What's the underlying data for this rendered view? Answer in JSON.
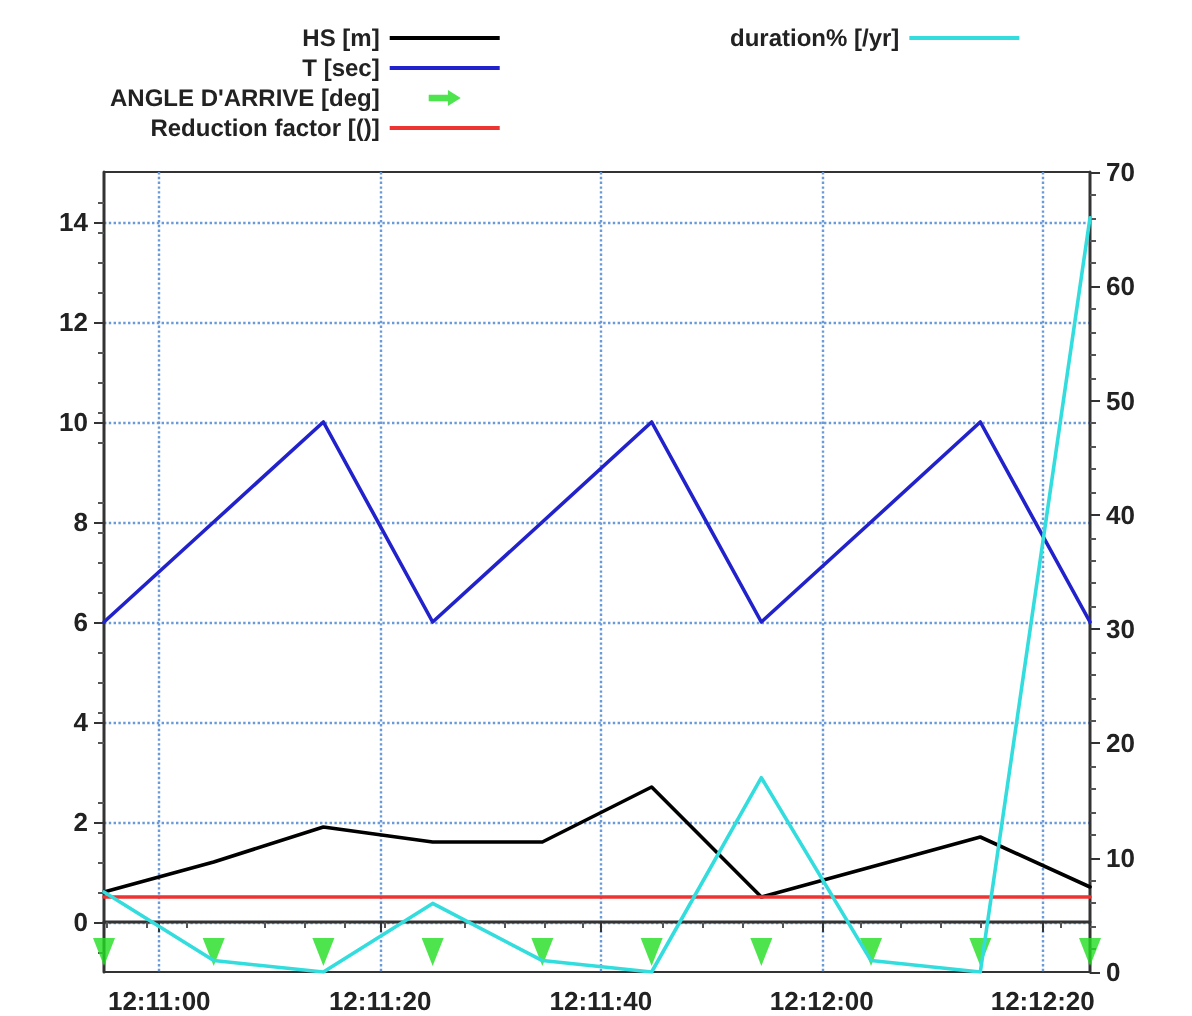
{
  "chart_data": {
    "type": "line",
    "x": [
      12.18194,
      12.1847,
      12.18746,
      12.19021,
      12.19297,
      12.19572,
      12.19848,
      12.20124,
      12.20399,
      12.20675
    ],
    "xlim": [
      12.18194,
      12.20675
    ],
    "xticks": [
      {
        "value": 12.18333,
        "label": "12:11:00"
      },
      {
        "value": 12.18889,
        "label": "12:11:20"
      },
      {
        "value": 12.19444,
        "label": "12:11:40"
      },
      {
        "value": 12.2,
        "label": "12:12:00"
      },
      {
        "value": 12.20556,
        "label": "12:12:20"
      }
    ],
    "ylim": [
      -1,
      15
    ],
    "yticks": [
      0,
      2,
      4,
      6,
      8,
      10,
      12,
      14
    ],
    "y2lim": [
      0,
      70
    ],
    "y2ticks": [
      0,
      10,
      20,
      30,
      40,
      50,
      60,
      70
    ],
    "grid": true,
    "legend": "top",
    "marker": "none",
    "line_style": "solid",
    "series": [
      {
        "name": "HS [m]",
        "color": "#000000",
        "values": [
          0.6,
          1.2,
          1.9,
          1.6,
          1.6,
          2.7,
          0.5,
          1.1,
          1.7,
          0.7
        ]
      },
      {
        "name": "T [sec]",
        "color": "#2222cc",
        "values": [
          6,
          8,
          10,
          6,
          8,
          10,
          6,
          8,
          10,
          6
        ]
      },
      {
        "name": "ANGLE D'ARRIVE [deg]",
        "type": "scatter",
        "marker": "triangle",
        "color": "#22dd22",
        "values": [
          -0.6,
          -0.6,
          -0.6,
          -0.6,
          -0.6,
          -0.6,
          -0.6,
          -0.6,
          -0.6,
          -0.6
        ]
      },
      {
        "name": "Reduction factor [()]",
        "color": "#ee3333",
        "values": [
          0.5,
          0.5,
          0.5,
          0.5,
          0.5,
          0.5,
          0.5,
          0.5,
          0.5,
          0.5
        ]
      },
      {
        "name": "duration% [/yr]",
        "color": "#33dddd",
        "axis": "y2",
        "values": [
          7,
          1,
          0,
          6,
          1,
          0,
          17,
          1,
          0,
          66
        ]
      }
    ]
  }
}
